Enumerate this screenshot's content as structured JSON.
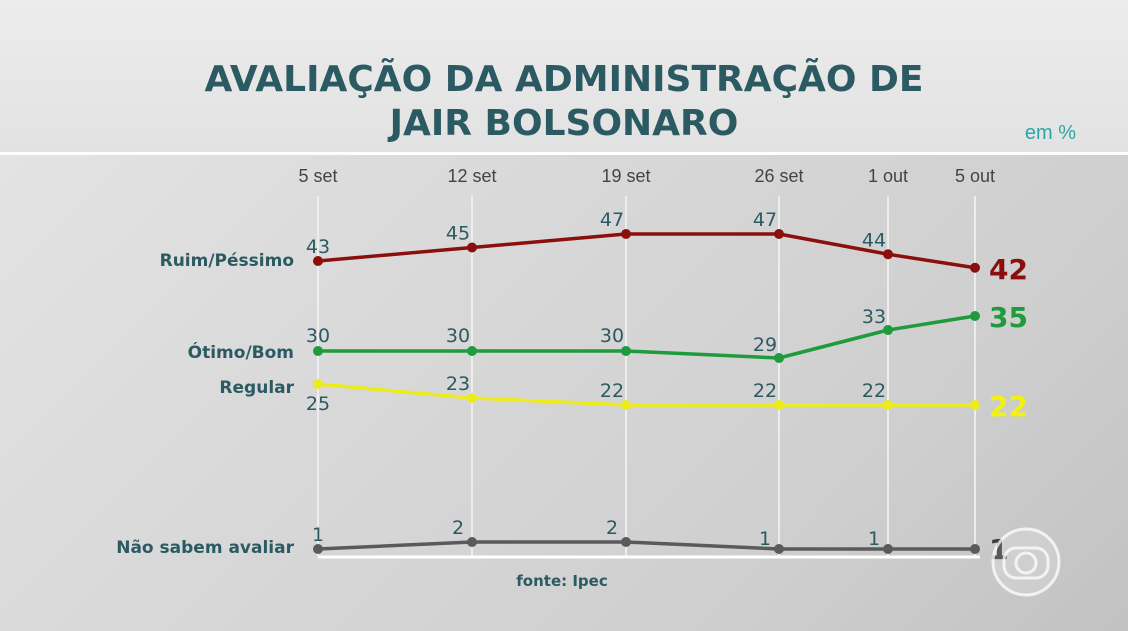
{
  "title_line1": "AVALIAÇÃO DA ADMINISTRAÇÃO DE",
  "title_line2": "JAIR BOLSONARO",
  "unit": "em %",
  "source": "fonte: Ipec",
  "colors": {
    "ruim": "#8b0f0f",
    "otimo": "#1f9a3c",
    "regular": "#ecec1c",
    "nao_sabem": "#5a5a5a",
    "text": "#2b5a62",
    "grid": "#f2f2f2"
  },
  "chart_data": {
    "type": "line",
    "title": "AVALIAÇÃO DA ADMINISTRAÇÃO DE JAIR BOLSONARO",
    "unit": "em %",
    "categories": [
      "5 set",
      "12 set",
      "19 set",
      "26 set",
      "1 out",
      "5 out"
    ],
    "series": [
      {
        "name": "Ruim/Péssimo",
        "values": [
          43,
          45,
          47,
          47,
          44,
          42
        ]
      },
      {
        "name": "Ótimo/Bom",
        "values": [
          30,
          30,
          30,
          29,
          33,
          35
        ]
      },
      {
        "name": "Regular",
        "values": [
          25,
          23,
          22,
          22,
          22,
          22
        ]
      },
      {
        "name": "Não sabem avaliar",
        "values": [
          1,
          2,
          2,
          1,
          1,
          1
        ]
      }
    ],
    "source": "fonte: Ipec"
  }
}
